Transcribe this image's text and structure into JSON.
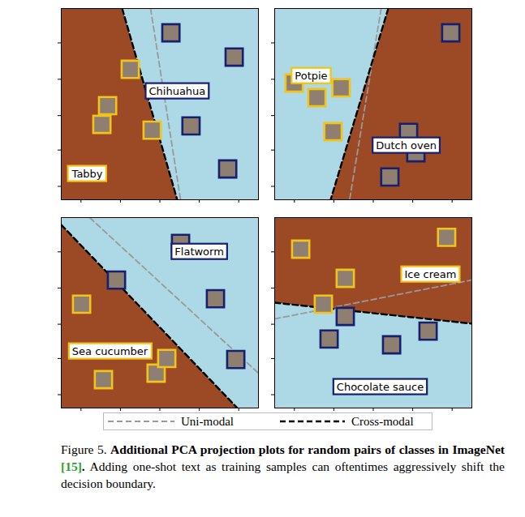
{
  "chart_data": [
    {
      "type": "scatter",
      "xlim": [
        0,
        1
      ],
      "ylim": [
        0,
        1
      ],
      "xticks": [
        0.1,
        0.3,
        0.5,
        0.7,
        0.9
      ],
      "yticks": [
        0.07,
        0.26,
        0.44,
        0.63,
        0.82
      ],
      "tick_labels": false,
      "series": [
        {
          "name": "Tabby",
          "color": "#f2c318",
          "region_color": "#9c4a26",
          "x": [
            0.35,
            0.235,
            0.206,
            0.461
          ],
          "y": [
            0.682,
            0.492,
            0.394,
            0.364
          ],
          "label_at": [
            0.132,
            0.136
          ],
          "region": [
            [
              0,
              0
            ],
            [
              0,
              1
            ],
            [
              0.309,
              1
            ],
            [
              0.588,
              0
            ]
          ]
        },
        {
          "name": "Chihuahua",
          "color": "#16206e",
          "region_color": "#add8e6",
          "x": [
            0.556,
            0.877,
            0.658,
            0.844
          ],
          "y": [
            0.873,
            0.746,
            0.386,
            0.161
          ],
          "label_at": [
            0.588,
            0.568
          ],
          "region": [
            [
              0.309,
              1
            ],
            [
              1,
              1
            ],
            [
              1,
              0
            ],
            [
              0.588,
              0
            ]
          ]
        }
      ],
      "boundaries": [
        {
          "name": "Uni-modal",
          "points": [
            [
              0.453,
              1
            ],
            [
              0.605,
              0
            ]
          ]
        },
        {
          "name": "Cross-modal",
          "points": [
            [
              0.309,
              1
            ],
            [
              0.588,
              0
            ]
          ]
        }
      ]
    },
    {
      "type": "scatter",
      "xlim": [
        0,
        1
      ],
      "ylim": [
        0,
        1
      ],
      "xticks": [
        0.1,
        0.3,
        0.5,
        0.7,
        0.9
      ],
      "yticks": [
        0.07,
        0.26,
        0.44,
        0.63,
        0.82
      ],
      "tick_labels": false,
      "series": [
        {
          "name": "Potpie",
          "color": "#f2c318",
          "region_color": "#add8e6",
          "x": [
            0.099,
            0.214,
            0.337,
            0.296
          ],
          "y": [
            0.61,
            0.534,
            0.585,
            0.356
          ],
          "label_at": [
            0.185,
            0.648
          ],
          "region": [
            [
              0,
              0
            ],
            [
              0,
              1
            ],
            [
              0.576,
              1
            ],
            [
              0.284,
              0
            ]
          ]
        },
        {
          "name": "Dutch oven",
          "color": "#16206e",
          "region_color": "#9c4a26",
          "x": [
            0.893,
            0.679,
            0.716,
            0.584
          ],
          "y": [
            0.873,
            0.352,
            0.246,
            0.119
          ],
          "label_at": [
            0.667,
            0.284
          ],
          "region": [
            [
              0.576,
              1
            ],
            [
              1,
              1
            ],
            [
              1,
              0
            ],
            [
              0.284,
              0
            ]
          ]
        }
      ],
      "boundaries": [
        {
          "name": "Uni-modal",
          "points": [
            [
              0.54,
              1
            ],
            [
              0.38,
              0
            ]
          ]
        },
        {
          "name": "Cross-modal",
          "points": [
            [
              0.576,
              1
            ],
            [
              0.284,
              0
            ]
          ]
        }
      ]
    },
    {
      "type": "scatter",
      "xlim": [
        0,
        1
      ],
      "ylim": [
        0,
        1
      ],
      "xticks": [
        0.1,
        0.3,
        0.5,
        0.7,
        0.9
      ],
      "yticks": [
        0.07,
        0.26,
        0.44,
        0.63,
        0.82
      ],
      "tick_labels": false,
      "series": [
        {
          "name": "Sea cucumber",
          "color": "#f2c318",
          "region_color": "#9c4a26",
          "x": [
            0.103,
            0.214,
            0.481,
            0.535
          ],
          "y": [
            0.545,
            0.149,
            0.183,
            0.26
          ],
          "label_at": [
            0.247,
            0.298
          ],
          "region": [
            [
              0,
              0
            ],
            [
              0,
              0.962
            ],
            [
              0.893,
              0
            ]
          ]
        },
        {
          "name": "Flatworm",
          "color": "#16206e",
          "region_color": "#add8e6",
          "x": [
            0.605,
            0.28,
            0.782,
            0.885
          ],
          "y": [
            0.864,
            0.672,
            0.574,
            0.255
          ],
          "label_at": [
            0.7,
            0.821
          ],
          "region": [
            [
              0,
              0.962
            ],
            [
              0,
              1
            ],
            [
              1,
              1
            ],
            [
              1,
              0
            ],
            [
              0.893,
              0
            ]
          ]
        }
      ],
      "boundaries": [
        {
          "name": "Uni-modal",
          "points": [
            [
              0.144,
              1
            ],
            [
              1,
              0.183
            ]
          ]
        },
        {
          "name": "Cross-modal",
          "points": [
            [
              0,
              0.962
            ],
            [
              0.893,
              0
            ]
          ]
        }
      ]
    },
    {
      "type": "scatter",
      "xlim": [
        0,
        1
      ],
      "ylim": [
        0,
        1
      ],
      "xticks": [
        0.1,
        0.3,
        0.5,
        0.7,
        0.9
      ],
      "yticks": [
        0.07,
        0.26,
        0.44,
        0.63,
        0.82
      ],
      "tick_labels": false,
      "series": [
        {
          "name": "Ice cream",
          "color": "#f2c318",
          "region_color": "#9c4a26",
          "x": [
            0.132,
            0.872,
            0.358,
            0.247
          ],
          "y": [
            0.834,
            0.896,
            0.681,
            0.545
          ],
          "label_at": [
            0.79,
            0.702
          ],
          "region": [
            [
              0,
              0.553
            ],
            [
              0,
              1
            ],
            [
              1,
              1
            ],
            [
              1,
              0.443
            ]
          ]
        },
        {
          "name": "Chocolate sauce",
          "color": "#16206e",
          "region_color": "#add8e6",
          "x": [
            0.358,
            0.276,
            0.593,
            0.778
          ],
          "y": [
            0.481,
            0.362,
            0.332,
            0.404
          ],
          "label_at": [
            0.535,
            0.111
          ],
          "region": [
            [
              0,
              0
            ],
            [
              0,
              0.553
            ],
            [
              1,
              0.443
            ],
            [
              1,
              0
            ]
          ]
        }
      ],
      "boundaries": [
        {
          "name": "Uni-modal",
          "points": [
            [
              0,
              0.468
            ],
            [
              1,
              0.672
            ]
          ]
        },
        {
          "name": "Cross-modal",
          "points": [
            [
              0,
              0.553
            ],
            [
              1,
              0.443
            ]
          ]
        }
      ]
    }
  ],
  "figure_legend": [
    {
      "name": "Uni-modal",
      "color": "#999999",
      "line_style": "dashed"
    },
    {
      "name": "Cross-modal",
      "color": "#000000",
      "line_style": "dashed"
    }
  ],
  "caption": {
    "label": "Figure 5.",
    "title": "Additional PCA projection plots for random pairs of classes in ImageNet",
    "citation": "[15]",
    "title_end": ".",
    "text": "Adding one-shot text as training samples can oftentimes aggressively shift the decision boundary."
  }
}
